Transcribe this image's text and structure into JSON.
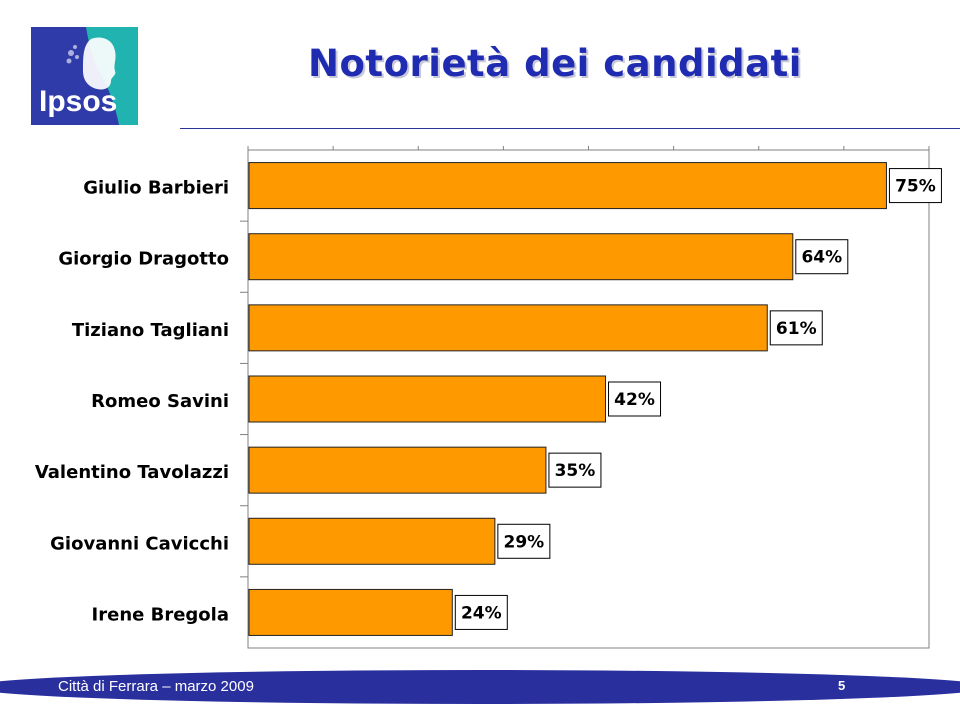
{
  "logo": {
    "text": "Ipsos",
    "bg_color": "#2f3ba8",
    "accent_color": "#21b3b0"
  },
  "header": {
    "title": "Notorietà dei candidati"
  },
  "footer": {
    "text": "Città di Ferrara – marzo 2009",
    "page_number": "5"
  },
  "colors": {
    "bar": "#ff9900",
    "title": "#1f2bb0",
    "footer": "#2a2f9e"
  },
  "chart_data": {
    "type": "bar",
    "orientation": "horizontal",
    "categories": [
      "Giulio Barbieri",
      "Giorgio Dragotto",
      "Tiziano Tagliani",
      "Romeo Savini",
      "Valentino Tavolazzi",
      "Giovanni Cavicchi",
      "Irene Bregola"
    ],
    "values": [
      75,
      64,
      61,
      42,
      35,
      29,
      24
    ],
    "value_labels": [
      "75%",
      "64%",
      "61%",
      "42%",
      "35%",
      "29%",
      "24%"
    ],
    "xlim": [
      0,
      80
    ],
    "grid": false,
    "legend": "none"
  }
}
